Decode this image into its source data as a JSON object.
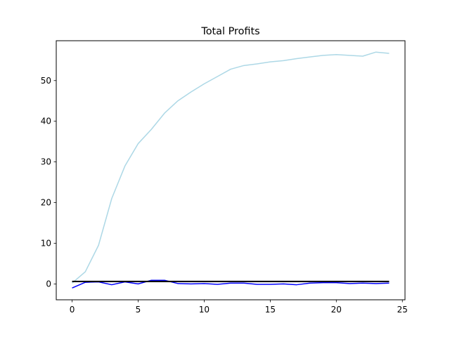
{
  "chart_data": {
    "type": "line",
    "title": "Total Profits",
    "xlabel": "",
    "ylabel": "",
    "xlim": [
      -1.2,
      25.2
    ],
    "ylim": [
      -3.9,
      59.8
    ],
    "xticks": [
      0,
      5,
      10,
      15,
      20,
      25
    ],
    "yticks": [
      0,
      10,
      20,
      30,
      40,
      50
    ],
    "grid": false,
    "legend": "none",
    "x": [
      0,
      1,
      2,
      3,
      4,
      5,
      6,
      7,
      8,
      9,
      10,
      11,
      12,
      13,
      14,
      15,
      16,
      17,
      18,
      19,
      20,
      21,
      22,
      23,
      24
    ],
    "series": [
      {
        "color": "#add8e6",
        "values": [
          0.2,
          3.0,
          9.5,
          21.0,
          29.0,
          34.5,
          38.0,
          42.0,
          45.0,
          47.2,
          49.2,
          51.0,
          52.8,
          53.7,
          54.1,
          54.6,
          54.9,
          55.4,
          55.8,
          56.2,
          56.4,
          56.2,
          56.0,
          57.0,
          56.7
        ]
      },
      {
        "color": "#0000ff",
        "values": [
          -1.0,
          0.4,
          0.5,
          -0.2,
          0.5,
          0.0,
          0.9,
          0.9,
          0.1,
          0.0,
          0.1,
          -0.1,
          0.2,
          0.2,
          -0.1,
          -0.1,
          0.0,
          -0.2,
          0.2,
          0.3,
          0.3,
          0.1,
          0.2,
          0.1,
          0.2
        ]
      },
      {
        "color": "#000000",
        "values": [
          0.6,
          0.6,
          0.6,
          0.6,
          0.6,
          0.6,
          0.6,
          0.6,
          0.6,
          0.6,
          0.6,
          0.6,
          0.6,
          0.6,
          0.6,
          0.6,
          0.6,
          0.6,
          0.6,
          0.6,
          0.6,
          0.6,
          0.6,
          0.6,
          0.6
        ]
      }
    ]
  }
}
